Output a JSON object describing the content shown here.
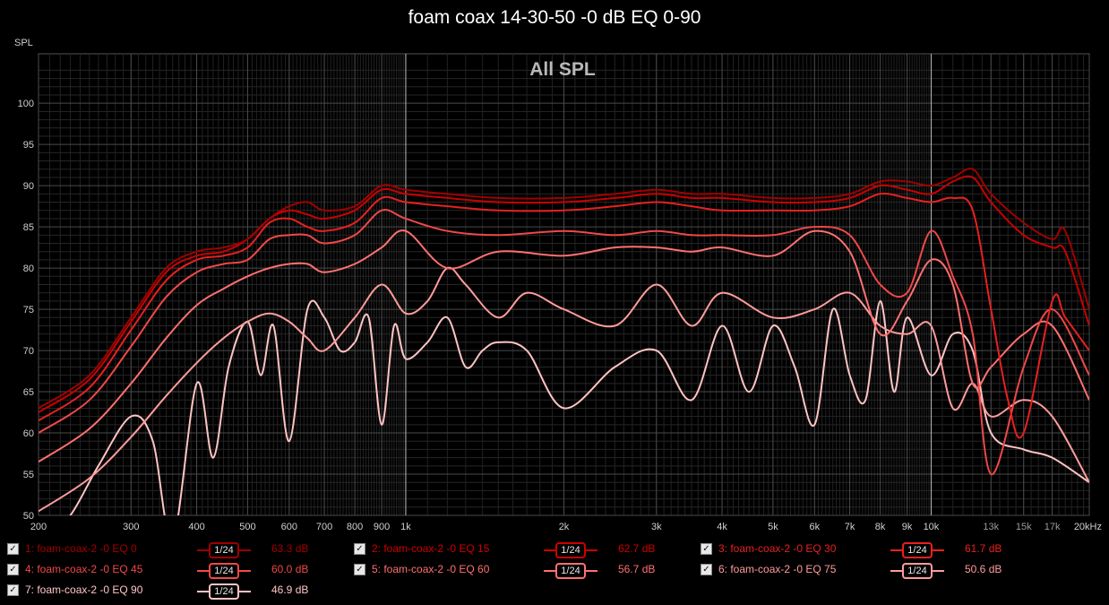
{
  "chart_data": {
    "type": "line",
    "title": "foam coax 14-30-50 -0 dB EQ 0-90",
    "subtitle": "All SPL",
    "ylabel": "SPL",
    "xscale": "log",
    "xlim": [
      200,
      20000
    ],
    "ylim": [
      50,
      106
    ],
    "xticks": [
      200,
      300,
      400,
      500,
      600,
      700,
      800,
      900,
      1000,
      2000,
      3000,
      4000,
      5000,
      6000,
      7000,
      8000,
      9000,
      10000,
      13000,
      15000,
      17000,
      20000
    ],
    "xtick_labels": [
      "200",
      "300",
      "400",
      "500",
      "600",
      "700",
      "800",
      "900",
      "1k",
      "2k",
      "3k",
      "4k",
      "5k",
      "6k",
      "7k",
      "8k",
      "9k",
      "10k",
      "13k",
      "15k",
      "17k",
      "20kHz"
    ],
    "yticks": [
      50,
      55,
      60,
      65,
      70,
      75,
      80,
      85,
      90,
      95,
      100
    ],
    "grid": true,
    "series": [
      {
        "name": "1: foam-coax-2 -0 EQ 0",
        "color": "#a00000",
        "smoothing": "1/24",
        "level": "63.3 dB",
        "x": [
          200,
          250,
          300,
          350,
          400,
          450,
          500,
          550,
          600,
          650,
          700,
          800,
          900,
          1000,
          1200,
          1500,
          2000,
          2500,
          3000,
          3500,
          4000,
          5000,
          6000,
          7000,
          8000,
          9000,
          10000,
          11000,
          12000,
          13000,
          15000,
          17000,
          18000,
          20000
        ],
        "y": [
          63,
          67,
          74,
          80,
          82,
          82.5,
          83.5,
          86,
          87.5,
          88,
          87,
          87.5,
          90,
          89.5,
          89,
          88.5,
          88.5,
          89,
          89.5,
          89,
          89,
          88.5,
          88.5,
          89,
          90.5,
          90.5,
          90,
          91,
          92,
          89,
          85.5,
          83.5,
          84.5,
          75
        ]
      },
      {
        "name": "2: foam-coax-2 -0 EQ 15",
        "color": "#cc0000",
        "smoothing": "1/24",
        "level": "62.7 dB",
        "x": [
          200,
          250,
          300,
          350,
          400,
          450,
          500,
          550,
          600,
          650,
          700,
          800,
          900,
          1000,
          1200,
          1500,
          2000,
          2500,
          3000,
          3500,
          4000,
          5000,
          6000,
          7000,
          8000,
          9000,
          10000,
          11000,
          12000,
          13000,
          15000,
          17000,
          18000,
          20000
        ],
        "y": [
          62.5,
          66.5,
          73.5,
          79.5,
          81.5,
          82,
          83.5,
          86,
          87,
          86.5,
          86,
          87,
          89.5,
          89,
          88.5,
          88,
          88,
          88.5,
          89,
          88.5,
          88.5,
          88,
          88,
          88.5,
          90,
          89.5,
          89,
          90.5,
          91,
          88,
          84,
          82.5,
          82,
          73
        ]
      },
      {
        "name": "3: foam-coax-2 -0 EQ 30",
        "color": "#e82020",
        "smoothing": "1/24",
        "level": "61.7 dB",
        "x": [
          200,
          250,
          300,
          350,
          400,
          450,
          500,
          550,
          600,
          650,
          700,
          800,
          900,
          1000,
          1200,
          1500,
          2000,
          2500,
          3000,
          3500,
          4000,
          5000,
          6000,
          7000,
          8000,
          9000,
          10000,
          11000,
          12000,
          13000,
          14000,
          15000,
          17000,
          18000,
          20000
        ],
        "y": [
          61.5,
          65.5,
          72.5,
          78.5,
          81,
          81.5,
          82.5,
          85.5,
          86,
          85,
          84.5,
          85.5,
          88.5,
          88,
          87.5,
          87,
          87,
          87.5,
          88,
          87.5,
          87,
          87,
          87,
          87.5,
          89,
          88.5,
          88,
          88.5,
          87,
          75,
          64,
          60,
          76,
          74,
          70
        ]
      },
      {
        "name": "4: foam-coax-2 -0 EQ 45",
        "color": "#f04848",
        "smoothing": "1/24",
        "level": "60.0 dB",
        "x": [
          200,
          250,
          300,
          350,
          400,
          450,
          500,
          550,
          600,
          650,
          700,
          800,
          900,
          1000,
          1200,
          1500,
          2000,
          2500,
          3000,
          3500,
          4000,
          5000,
          6000,
          7000,
          8000,
          9000,
          10000,
          11000,
          12000,
          13000,
          15000,
          17000,
          20000
        ],
        "y": [
          60,
          64,
          70.5,
          76.5,
          79.5,
          80.5,
          81,
          83.5,
          84,
          84,
          83,
          84,
          87,
          86,
          84.5,
          84,
          84.5,
          84,
          84.5,
          84,
          84,
          84,
          85,
          84,
          78,
          77,
          84.5,
          79,
          72,
          55,
          68,
          75,
          67
        ]
      },
      {
        "name": "5: foam-coax-2 -0 EQ 60",
        "color": "#ff7070",
        "smoothing": "1/24",
        "level": "56.7 dB",
        "x": [
          200,
          250,
          300,
          350,
          400,
          450,
          500,
          550,
          600,
          650,
          700,
          800,
          900,
          1000,
          1200,
          1500,
          2000,
          2500,
          3000,
          3500,
          4000,
          5000,
          6000,
          7000,
          8000,
          9000,
          10000,
          11000,
          12000,
          13000,
          15000,
          17000,
          20000
        ],
        "y": [
          56.5,
          60.5,
          66,
          71.5,
          75.5,
          77.5,
          79,
          80,
          80.5,
          80.5,
          79.5,
          80.5,
          82.5,
          84.5,
          80,
          82,
          81.5,
          82.5,
          82.5,
          82,
          82.5,
          81.5,
          84.5,
          82,
          72,
          76,
          81,
          78,
          66,
          68,
          72,
          73,
          64
        ]
      },
      {
        "name": "6: foam-coax-2 -0 EQ 75",
        "color": "#ff9c9c",
        "smoothing": "1/24",
        "level": "50.6 dB",
        "x": [
          200,
          250,
          300,
          350,
          400,
          450,
          500,
          550,
          600,
          650,
          700,
          800,
          900,
          1000,
          1100,
          1200,
          1300,
          1500,
          1700,
          2000,
          2500,
          3000,
          3500,
          4000,
          5000,
          6000,
          7000,
          8000,
          9000,
          10000,
          11000,
          12000,
          13000,
          15000,
          17000,
          20000
        ],
        "y": [
          50.5,
          54.5,
          59.5,
          64.5,
          68.5,
          71.5,
          73.5,
          74.5,
          73.5,
          71.5,
          70,
          74,
          78,
          74.5,
          76,
          80,
          78,
          74,
          77,
          75,
          73,
          78,
          73,
          77,
          74,
          75,
          77,
          73,
          72,
          73,
          63,
          66,
          62,
          64,
          62,
          54
        ]
      },
      {
        "name": "7: foam-coax-2 -0 EQ 90",
        "color": "#ffc4c4",
        "smoothing": "1/24",
        "level": "46.9 dB",
        "x": [
          200,
          230,
          260,
          300,
          330,
          360,
          400,
          430,
          460,
          500,
          530,
          560,
          600,
          650,
          700,
          750,
          800,
          850,
          900,
          950,
          1000,
          1100,
          1200,
          1300,
          1400,
          1500,
          1700,
          2000,
          2500,
          3000,
          3500,
          4000,
          4500,
          5000,
          5500,
          6000,
          6500,
          7000,
          7500,
          8000,
          8500,
          9000,
          10000,
          11000,
          12000,
          13000,
          15000,
          17000,
          20000
        ],
        "y": [
          46,
          50,
          56,
          62,
          59,
          47,
          66,
          57,
          68,
          73.5,
          67,
          73,
          59,
          75,
          74,
          70,
          71,
          74,
          61,
          73,
          69,
          71,
          74,
          68,
          70,
          71,
          70,
          63,
          68,
          70,
          64,
          73,
          65,
          73,
          68,
          61,
          75,
          67,
          64,
          76,
          65,
          74,
          67,
          72,
          70,
          60,
          58,
          57,
          54
        ]
      }
    ]
  }
}
